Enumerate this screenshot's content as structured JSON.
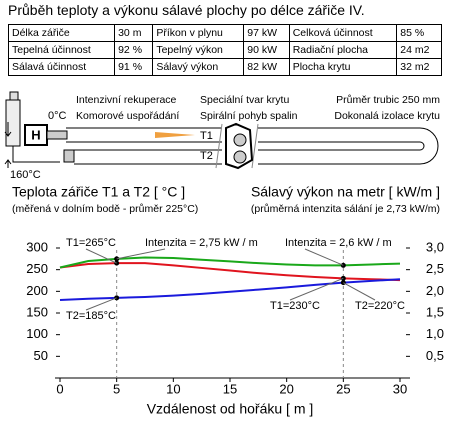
{
  "title": "Průběh teploty a výkonu sálavé plochy po délce zářiče IV.",
  "table": {
    "rows": [
      [
        "Délka zářiče",
        "30 m",
        "Příkon v plynu",
        "97 kW",
        "Celková účinnost",
        "85 %"
      ],
      [
        "Tepelná účinnost",
        "92 %",
        "Tepelný výkon",
        "90 kW",
        "Radiační plocha",
        "24 m2"
      ],
      [
        "Sálavá účinnost",
        "91 %",
        "Sálavý výkon",
        "82 kW",
        "Plocha krytu",
        "32 m2"
      ]
    ]
  },
  "diagram": {
    "labels": {
      "cold": "0°C",
      "burner": "H",
      "hot": "160°C",
      "t1": "T1",
      "t2": "T2"
    },
    "features": [
      "Intenzivní rekuperace",
      "Komorové uspořádání",
      "Speciální tvar krytu",
      "Spirální pohyb spalin",
      "Průměr trubic 250 mm",
      "Dokonalá izolace krytu"
    ]
  },
  "chart_data": {
    "type": "line",
    "y_title": "Teplota zářiče T1 a T2 [ °C ]",
    "y_subtitle": "(měřená v dolním bodě - průměr 225°C)",
    "y2_title": "Sálavý výkon na metr [ kW/m ]",
    "y2_subtitle": "(průměrná intenzita sálání je 2,73 kW/m)",
    "x_title": "Vzdálenost od hořáku [ m ]",
    "x": [
      0,
      2.5,
      5,
      7.5,
      10,
      12.5,
      15,
      17.5,
      20,
      22.5,
      25,
      27.5,
      30
    ],
    "series": [
      {
        "name": "T1",
        "color": "#e0141e",
        "values": [
          255,
          263,
          265,
          265,
          260,
          254,
          248,
          242,
          237,
          233,
          230,
          228,
          226
        ]
      },
      {
        "name": "T2",
        "color": "#1a1adc",
        "values": [
          180,
          183,
          185,
          187,
          190,
          194,
          199,
          204,
          209,
          215,
          220,
          224,
          228
        ]
      },
      {
        "name": "Intenzita",
        "color": "#1aa81a",
        "axis": "y2",
        "values": [
          2.55,
          2.7,
          2.75,
          2.78,
          2.77,
          2.73,
          2.69,
          2.65,
          2.62,
          2.6,
          2.6,
          2.62,
          2.64
        ]
      }
    ],
    "xlim": [
      0,
      30
    ],
    "xticks": [
      0,
      5,
      10,
      15,
      20,
      25,
      30
    ],
    "ylim": [
      0,
      330
    ],
    "yticks": [
      50,
      100,
      150,
      200,
      250,
      300
    ],
    "y2lim": [
      0,
      3.3
    ],
    "y2ticks": [
      {
        "value": 0.5,
        "label": "0,5"
      },
      {
        "value": 1,
        "label": "1,0"
      },
      {
        "value": 1.5,
        "label": "1,5"
      },
      {
        "value": 2,
        "label": "2,0"
      },
      {
        "value": 2.5,
        "label": "2,5"
      },
      {
        "value": 3,
        "label": "3,0"
      }
    ],
    "annotations": [
      "T1=265°C",
      "Intenzita = 2,75 kW / m",
      "Intenzita = 2,6 kW / m",
      "T2=185°C",
      "T1=230°C",
      "T2=220°C"
    ]
  }
}
